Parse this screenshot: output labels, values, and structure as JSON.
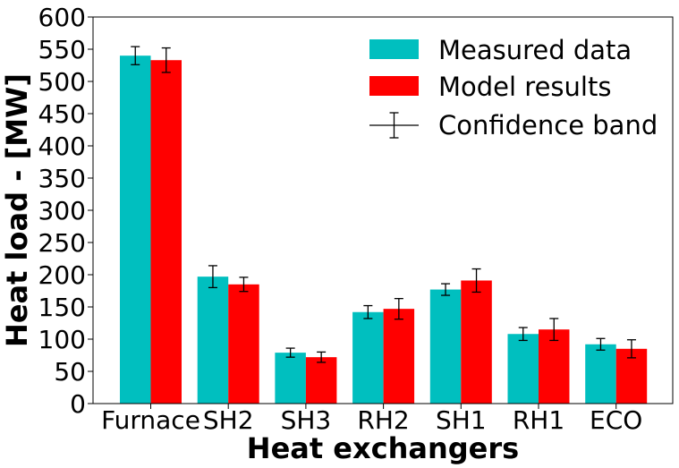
{
  "chart_data": {
    "type": "bar",
    "title": "",
    "xlabel": "Heat exchangers",
    "ylabel": "Heat load - [MW]",
    "categories": [
      "Furnace",
      "SH2",
      "SH3",
      "RH2",
      "SH1",
      "RH1",
      "ECO"
    ],
    "ylim": [
      0,
      600
    ],
    "yticks": [
      "0",
      "50",
      "100",
      "150",
      "200",
      "250",
      "300",
      "350",
      "400",
      "450",
      "500",
      "550",
      "600"
    ],
    "grid": false,
    "legend_position": "top-right",
    "series": [
      {
        "name": "Measured data",
        "color": "#00bfbf",
        "values": [
          540,
          197,
          79,
          142,
          177,
          108,
          92
        ],
        "error": [
          14,
          17,
          7,
          10,
          9,
          10,
          9
        ]
      },
      {
        "name": "Model results",
        "color": "#ff0000",
        "values": [
          533,
          185,
          72,
          147,
          191,
          115,
          85
        ],
        "error": [
          19,
          11,
          8,
          16,
          18,
          17,
          14
        ]
      }
    ],
    "error_legend": "Confidence band"
  }
}
